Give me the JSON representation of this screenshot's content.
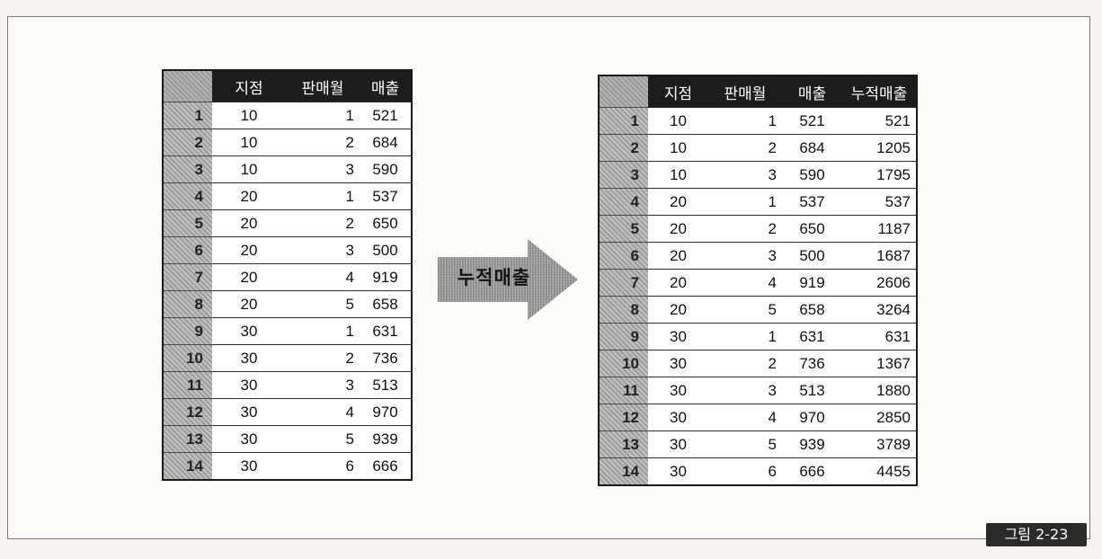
{
  "left_table": {
    "headers": [
      "지점",
      "판매월",
      "매출"
    ],
    "rows": [
      {
        "idx": "1",
        "branch": "10",
        "month": "1",
        "sales": "521"
      },
      {
        "idx": "2",
        "branch": "10",
        "month": "2",
        "sales": "684"
      },
      {
        "idx": "3",
        "branch": "10",
        "month": "3",
        "sales": "590"
      },
      {
        "idx": "4",
        "branch": "20",
        "month": "1",
        "sales": "537"
      },
      {
        "idx": "5",
        "branch": "20",
        "month": "2",
        "sales": "650"
      },
      {
        "idx": "6",
        "branch": "20",
        "month": "3",
        "sales": "500"
      },
      {
        "idx": "7",
        "branch": "20",
        "month": "4",
        "sales": "919"
      },
      {
        "idx": "8",
        "branch": "20",
        "month": "5",
        "sales": "658"
      },
      {
        "idx": "9",
        "branch": "30",
        "month": "1",
        "sales": "631"
      },
      {
        "idx": "10",
        "branch": "30",
        "month": "2",
        "sales": "736"
      },
      {
        "idx": "11",
        "branch": "30",
        "month": "3",
        "sales": "513"
      },
      {
        "idx": "12",
        "branch": "30",
        "month": "4",
        "sales": "970"
      },
      {
        "idx": "13",
        "branch": "30",
        "month": "5",
        "sales": "939"
      },
      {
        "idx": "14",
        "branch": "30",
        "month": "6",
        "sales": "666"
      }
    ]
  },
  "arrow": {
    "label": "누적매출"
  },
  "right_table": {
    "headers": [
      "지점",
      "판매월",
      "매출",
      "누적매출"
    ],
    "rows": [
      {
        "idx": "1",
        "branch": "10",
        "month": "1",
        "sales": "521",
        "cum": "521"
      },
      {
        "idx": "2",
        "branch": "10",
        "month": "2",
        "sales": "684",
        "cum": "1205"
      },
      {
        "idx": "3",
        "branch": "10",
        "month": "3",
        "sales": "590",
        "cum": "1795"
      },
      {
        "idx": "4",
        "branch": "20",
        "month": "1",
        "sales": "537",
        "cum": "537"
      },
      {
        "idx": "5",
        "branch": "20",
        "month": "2",
        "sales": "650",
        "cum": "1187"
      },
      {
        "idx": "6",
        "branch": "20",
        "month": "3",
        "sales": "500",
        "cum": "1687"
      },
      {
        "idx": "7",
        "branch": "20",
        "month": "4",
        "sales": "919",
        "cum": "2606"
      },
      {
        "idx": "8",
        "branch": "20",
        "month": "5",
        "sales": "658",
        "cum": "3264"
      },
      {
        "idx": "9",
        "branch": "30",
        "month": "1",
        "sales": "631",
        "cum": "631"
      },
      {
        "idx": "10",
        "branch": "30",
        "month": "2",
        "sales": "736",
        "cum": "1367"
      },
      {
        "idx": "11",
        "branch": "30",
        "month": "3",
        "sales": "513",
        "cum": "1880"
      },
      {
        "idx": "12",
        "branch": "30",
        "month": "4",
        "sales": "970",
        "cum": "2850"
      },
      {
        "idx": "13",
        "branch": "30",
        "month": "5",
        "sales": "939",
        "cum": "3789"
      },
      {
        "idx": "14",
        "branch": "30",
        "month": "6",
        "sales": "666",
        "cum": "4455"
      }
    ]
  },
  "figure_label": "그림 2-23"
}
